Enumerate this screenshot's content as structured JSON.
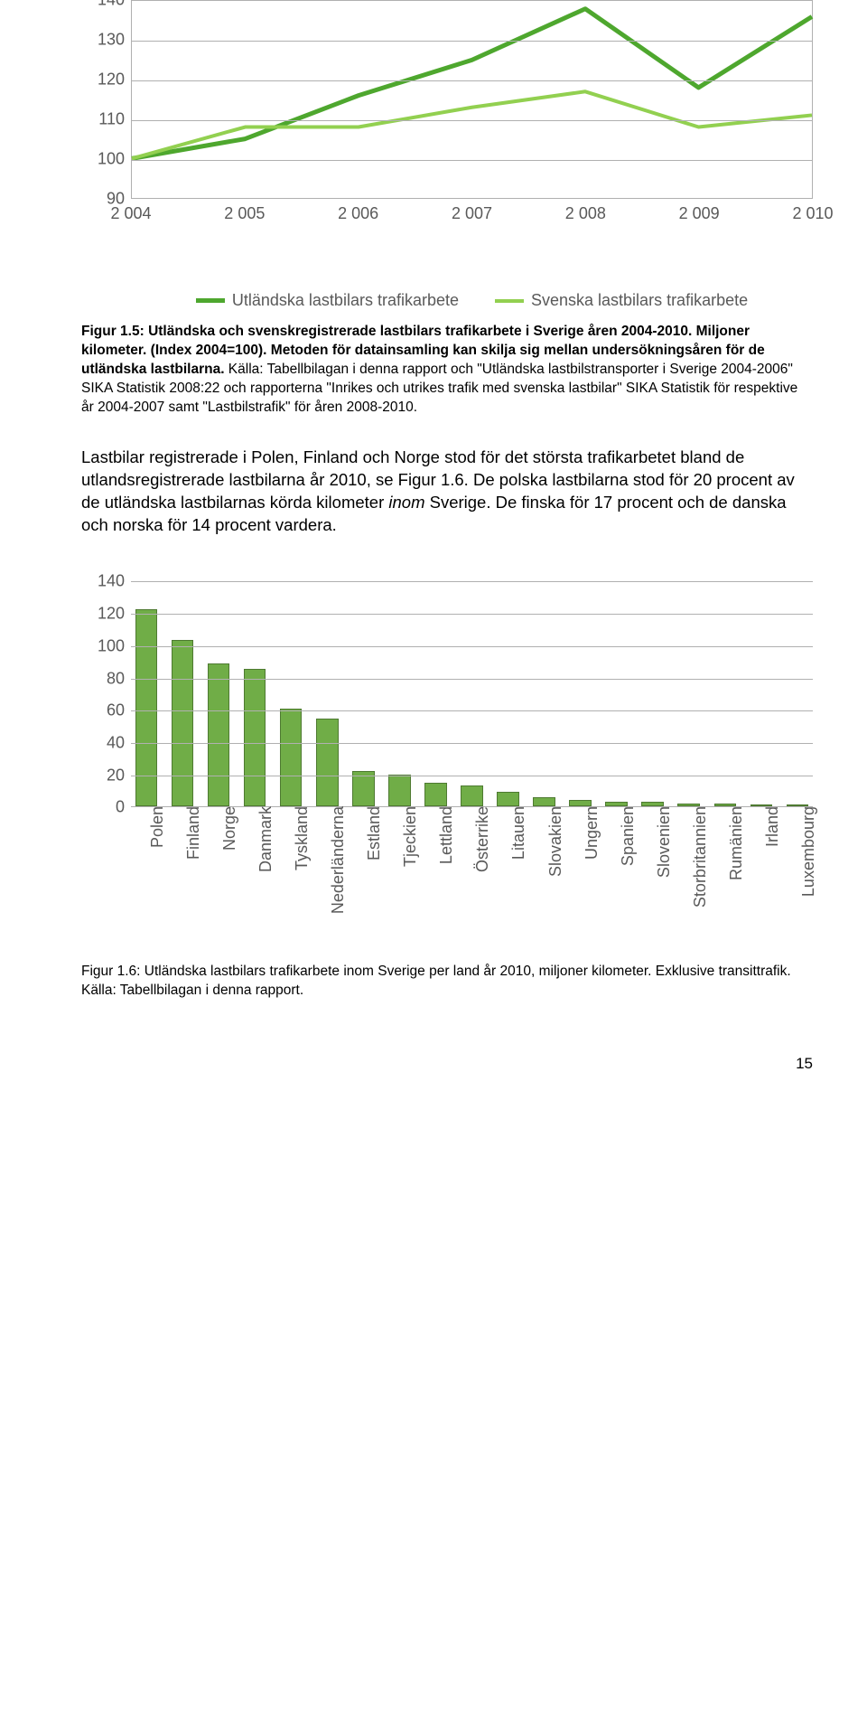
{
  "line_chart": {
    "type": "line",
    "x_categories": [
      "2 004",
      "2 005",
      "2 006",
      "2 007",
      "2 008",
      "2 009",
      "2 010"
    ],
    "series": [
      {
        "name": "Utländska lastbilars trafikarbete",
        "color": "#4ea72e",
        "stroke_width": 5,
        "values": [
          100,
          105,
          116,
          125,
          138,
          118,
          136
        ]
      },
      {
        "name": "Svenska lastbilars trafikarbete",
        "color": "#92d050",
        "stroke_width": 4,
        "values": [
          100,
          108,
          108,
          113,
          117,
          108,
          111
        ]
      }
    ],
    "ylim": [
      90,
      140
    ],
    "ytick_step": 10,
    "grid_color": "#b0b0b0",
    "background": "#ffffff",
    "label_fontsize": 18,
    "label_color": "#595959"
  },
  "caption1": {
    "lead": "Figur 1.5: Utländska och svenskregistrerade lastbilars trafikarbete i Sverige åren 2004-2010. Miljoner kilometer. (Index 2004=100). Metoden för datainsamling kan skilja sig mellan undersökningsåren för de utländska lastbilarna.",
    "rest": " Källa: Tabellbilagan i denna rapport och \"Utländska lastbilstransporter i Sverige 2004-2006\" SIKA Statistik 2008:22 och rapporterna \"Inrikes och utrikes trafik med svenska lastbilar\" SIKA Statistik för respektive år 2004-2007 samt \"Lastbilstrafik\" för åren 2008-2010."
  },
  "body_text_a": "Lastbilar registrerade i Polen, Finland och Norge stod för det största trafikarbetet bland de utlandsregistrerade lastbilarna år 2010, se Figur 1.6. De polska lastbilarna stod för 20 procent av de utländska lastbilarnas körda kilometer ",
  "body_text_italic": "inom",
  "body_text_b": " Sverige. De finska för 17 procent och de danska och norska för 14 procent vardera.",
  "bar_chart": {
    "type": "bar",
    "categories": [
      "Polen",
      "Finland",
      "Norge",
      "Danmark",
      "Tyskland",
      "Nederländerna",
      "Estland",
      "Tjeckien",
      "Lettland",
      "Österrike",
      "Litauen",
      "Slovakien",
      "Ungern",
      "Spanien",
      "Slovenien",
      "Storbritannien",
      "Rumänien",
      "Irland",
      "Luxembourg"
    ],
    "values": [
      123,
      104,
      89,
      86,
      61,
      55,
      22,
      20,
      15,
      13,
      9,
      6,
      4,
      3,
      3,
      2,
      2,
      1,
      1
    ],
    "bar_color": "#70ad47",
    "bar_border": "#4e7a31",
    "ylim": [
      0,
      140
    ],
    "ytick_step": 20,
    "grid_color": "#b0b0b0",
    "label_fontsize": 18,
    "label_color": "#595959"
  },
  "caption2": {
    "lead": "Figur 1.6: Utländska lastbilars trafikarbete inom Sverige per land år 2010, miljoner kilometer. Exklusive transittrafik.",
    "rest": " Källa: Tabellbilagan i denna rapport."
  },
  "page_number": "15"
}
